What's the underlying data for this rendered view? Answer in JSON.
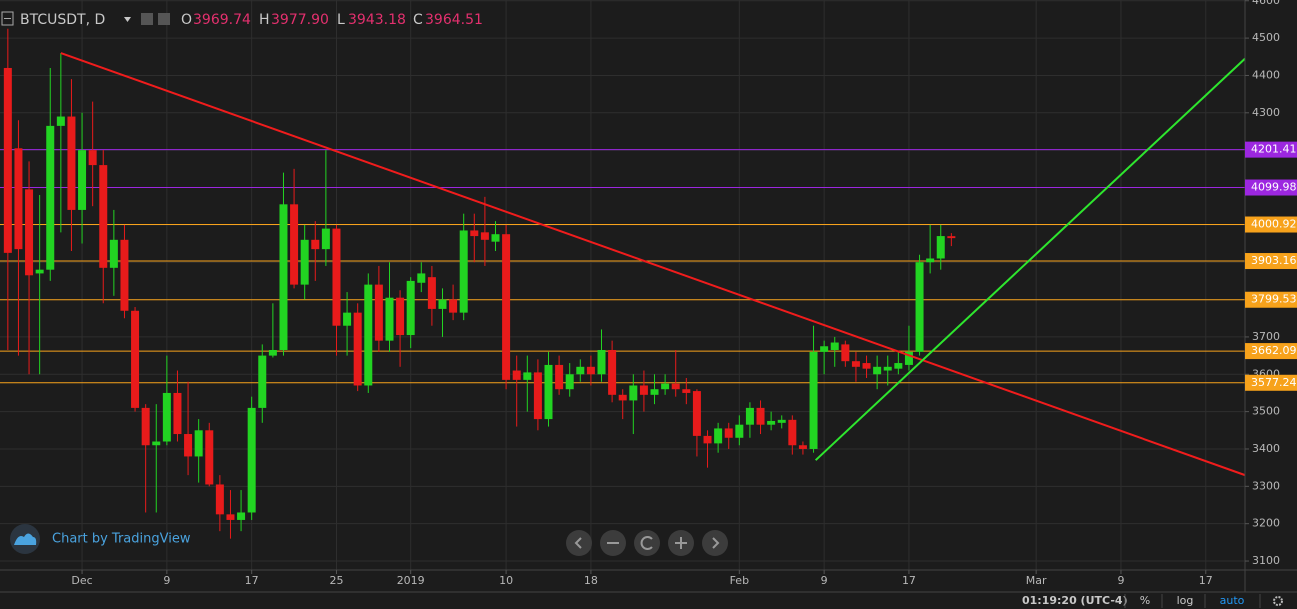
{
  "header": {
    "symbol": "BTCUSDT, D",
    "ohlc": [
      {
        "label": "O",
        "value": "3969.74"
      },
      {
        "label": "H",
        "value": "3977.90"
      },
      {
        "label": "L",
        "value": "3943.18"
      },
      {
        "label": "C",
        "value": "3964.51"
      }
    ]
  },
  "chart_data": {
    "type": "candlestick",
    "up_color": "#22d422",
    "down_color": "#e81b1b",
    "open": [
      4420,
      4205,
      4095,
      3870,
      3880,
      4265,
      4290,
      4040,
      4200,
      4160,
      3885,
      3960,
      3770,
      3510,
      3410,
      3420,
      3550,
      3440,
      3380,
      3450,
      3305,
      3225,
      3210,
      3230,
      3510,
      3650,
      3665,
      4055,
      3840,
      3960,
      3935,
      3990,
      3730,
      3765,
      3570,
      3840,
      3690,
      3805,
      3705,
      3845,
      3860,
      3775,
      3800,
      3765,
      3985,
      3980,
      3955,
      3975,
      3610,
      3585,
      3605,
      3480,
      3625,
      3560,
      3600,
      3620,
      3600,
      3665,
      3545,
      3530,
      3570,
      3545,
      3560,
      3575,
      3560,
      3555,
      3435,
      3415,
      3455,
      3430,
      3465,
      3510,
      3465,
      3470,
      3478,
      3410,
      3400,
      3660,
      3665,
      3680,
      3635,
      3630,
      3600,
      3610,
      3615,
      3625,
      3660,
      3900,
      3910,
      3969.74
    ],
    "high": [
      4525,
      4280,
      4170,
      4080,
      4420,
      4460,
      4390,
      4300,
      4330,
      4200,
      4040,
      4000,
      3780,
      3520,
      3520,
      3650,
      3610,
      3580,
      3480,
      3470,
      3330,
      3290,
      3290,
      3540,
      3680,
      3790,
      4140,
      4150,
      4000,
      4010,
      4200,
      4000,
      3820,
      3790,
      3870,
      3890,
      3900,
      3825,
      3860,
      3900,
      3890,
      3830,
      3840,
      4030,
      4030,
      4075,
      4010,
      4000,
      3650,
      3650,
      3640,
      3660,
      3650,
      3630,
      3640,
      3650,
      3720,
      3690,
      3560,
      3600,
      3610,
      3600,
      3600,
      3665,
      3590,
      3560,
      3450,
      3470,
      3470,
      3490,
      3525,
      3530,
      3500,
      3490,
      3490,
      3420,
      3730,
      3690,
      3700,
      3690,
      3660,
      3650,
      3650,
      3650,
      3660,
      3730,
      3920,
      4000,
      4000,
      3977.9
    ],
    "low": [
      3665,
      3650,
      3600,
      3600,
      3850,
      3980,
      3930,
      3950,
      4050,
      3790,
      3810,
      3750,
      3500,
      3230,
      3230,
      3410,
      3420,
      3330,
      3310,
      3300,
      3180,
      3160,
      3180,
      3210,
      3470,
      3645,
      3650,
      3830,
      3800,
      3850,
      3890,
      3650,
      3650,
      3555,
      3550,
      3660,
      3660,
      3620,
      3670,
      3820,
      3730,
      3700,
      3745,
      3745,
      3900,
      3890,
      3930,
      3560,
      3460,
      3500,
      3450,
      3460,
      3545,
      3540,
      3580,
      3570,
      3580,
      3525,
      3480,
      3440,
      3500,
      3520,
      3545,
      3540,
      3520,
      3380,
      3350,
      3390,
      3400,
      3410,
      3430,
      3440,
      3450,
      3455,
      3385,
      3385,
      3390,
      3600,
      3620,
      3620,
      3580,
      3590,
      3560,
      3570,
      3600,
      3610,
      3650,
      3870,
      3880,
      3943.18
    ],
    "close": [
      3925,
      3935,
      3865,
      3880,
      4265,
      4290,
      4040,
      4200,
      4160,
      3885,
      3960,
      3770,
      3510,
      3410,
      3420,
      3550,
      3440,
      3380,
      3450,
      3305,
      3225,
      3210,
      3230,
      3510,
      3650,
      3665,
      4055,
      3840,
      3960,
      3935,
      3990,
      3730,
      3765,
      3570,
      3840,
      3690,
      3805,
      3705,
      3850,
      3870,
      3775,
      3800,
      3765,
      3985,
      3970,
      3960,
      3975,
      3585,
      3585,
      3605,
      3480,
      3625,
      3560,
      3600,
      3620,
      3600,
      3665,
      3545,
      3530,
      3570,
      3545,
      3560,
      3575,
      3560,
      3550,
      3435,
      3415,
      3455,
      3430,
      3465,
      3510,
      3465,
      3475,
      3478,
      3410,
      3400,
      3660,
      3675,
      3685,
      3635,
      3620,
      3615,
      3620,
      3620,
      3630,
      3660,
      3900,
      3910,
      3970,
      3964.51
    ],
    "xlim": [
      -0.74,
      116.7
    ],
    "xticks": [
      {
        "value": 7,
        "label": "Dec"
      },
      {
        "value": 15,
        "label": "9"
      },
      {
        "value": 23,
        "label": "17"
      },
      {
        "value": 31,
        "label": "25"
      },
      {
        "value": 38,
        "label": "2019"
      },
      {
        "value": 47,
        "label": "10"
      },
      {
        "value": 55,
        "label": "18"
      },
      {
        "value": 69,
        "label": "Feb"
      },
      {
        "value": 77,
        "label": "9"
      },
      {
        "value": 85,
        "label": "17"
      },
      {
        "value": 97,
        "label": "Mar"
      },
      {
        "value": 105,
        "label": "9"
      },
      {
        "value": 113,
        "label": "17"
      }
    ],
    "ylim": [
      3076,
      4602
    ],
    "yticks": [
      3100,
      3200,
      3300,
      3400,
      3500,
      3600,
      3700,
      3800,
      3900,
      4000,
      4100,
      4200,
      4300,
      4400,
      4500,
      4600
    ],
    "grid": true,
    "hlines": [
      {
        "value": 4201.41,
        "color": "#9c27e0"
      },
      {
        "value": 4099.98,
        "color": "#9c27e0"
      },
      {
        "value": 4000.92,
        "color": "#f7a21b"
      },
      {
        "value": 3903.16,
        "color": "#f7a21b"
      },
      {
        "value": 3799.53,
        "color": "#f7a21b"
      },
      {
        "value": 3662.09,
        "color": "#f7a21b"
      },
      {
        "value": 3577.24,
        "color": "#f7a21b"
      }
    ],
    "trendlines": [
      {
        "color": "#f01c1c",
        "points": [
          [
            5,
            4460
          ],
          [
            116.7,
            3330
          ]
        ]
      },
      {
        "color": "#2ee62e",
        "points": [
          [
            76.2,
            3370
          ],
          [
            116.7,
            4445
          ]
        ]
      }
    ]
  },
  "branding": "Chart by TradingView",
  "footer": {
    "time": "01:19:20 (UTC-4)",
    "buttons": [
      "%",
      "log",
      "auto"
    ]
  }
}
